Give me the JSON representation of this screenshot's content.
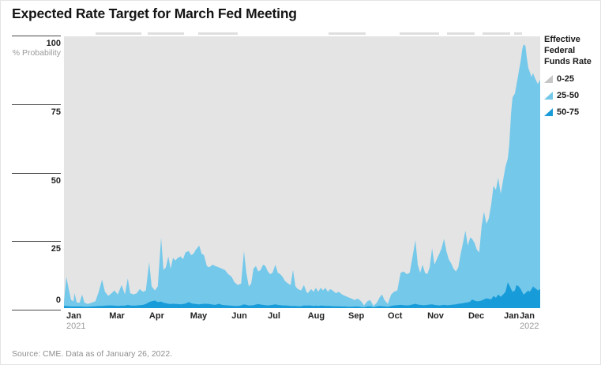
{
  "title": "Expected Rate Target for March Fed Meeting",
  "source": "Source: CME. Data as of January 26, 2022.",
  "y_axis": {
    "title": "% Probability",
    "ticks": [
      100,
      75,
      50,
      25,
      0
    ]
  },
  "x_axis": {
    "labels": [
      {
        "text": "Jan",
        "f": 0.005,
        "year": "2021"
      },
      {
        "text": "Mar",
        "f": 0.095
      },
      {
        "text": "Apr",
        "f": 0.179
      },
      {
        "text": "May",
        "f": 0.265
      },
      {
        "text": "Jun",
        "f": 0.352
      },
      {
        "text": "Jul",
        "f": 0.428
      },
      {
        "text": "Aug",
        "f": 0.512
      },
      {
        "text": "Sep",
        "f": 0.597
      },
      {
        "text": "Oct",
        "f": 0.68
      },
      {
        "text": "Nov",
        "f": 0.763
      },
      {
        "text": "Dec",
        "f": 0.849
      },
      {
        "text": "Jan",
        "f": 0.924
      },
      {
        "text": "Jan",
        "f": 0.957,
        "year": "2022"
      }
    ]
  },
  "legend": {
    "title_lines": [
      "Effective Federal",
      "Funds Rate"
    ],
    "items": [
      {
        "label": "0-25",
        "color": "#c6c6c6"
      },
      {
        "label": "25-50",
        "color": "#74c8ea"
      },
      {
        "label": "50-75",
        "color": "#189cd9"
      }
    ]
  },
  "colors": {
    "band_0_25_bg": "#e4e4e4",
    "band_25_50": "#74c8ea",
    "band_50_75": "#189cd9"
  },
  "top_edge_marks": [
    [
      0.066,
      0.163
    ],
    [
      0.176,
      0.252
    ],
    [
      0.282,
      0.365
    ],
    [
      0.556,
      0.634
    ],
    [
      0.705,
      0.788
    ],
    [
      0.804,
      0.862
    ],
    [
      0.879,
      0.937
    ],
    [
      0.945,
      0.962
    ]
  ],
  "chart_data": {
    "type": "area",
    "stacked": true,
    "title": "Expected Rate Target for March Fed Meeting",
    "ylabel": "% Probability",
    "ylim": [
      0,
      100
    ],
    "x_range": "fraction of axis from Jan 2021 to Jan 2022",
    "legend_position": "right",
    "series_names": [
      "50-75",
      "25-50",
      "0-25 (background remainder to 100%)"
    ],
    "points_format": [
      "x_fraction",
      "prob_25_50",
      "prob_50_75"
    ],
    "points": [
      [
        0,
        1.2,
        0.8
      ],
      [
        0.002,
        5.2,
        0.8
      ],
      [
        0.005,
        10.7,
        0.8
      ],
      [
        0.01,
        6.3,
        0.7
      ],
      [
        0.015,
        2.4,
        0.6
      ],
      [
        0.02,
        1.9,
        0.6
      ],
      [
        0.022,
        4.9,
        0.6
      ],
      [
        0.027,
        1.4,
        0.6
      ],
      [
        0.033,
        1.4,
        0.6
      ],
      [
        0.038,
        4.4,
        0.6
      ],
      [
        0.043,
        1.5,
        0.5
      ],
      [
        0.05,
        1,
        0.5
      ],
      [
        0.058,
        1.4,
        0.6
      ],
      [
        0.066,
        1.8,
        0.7
      ],
      [
        0.073,
        5.2,
        0.8
      ],
      [
        0.08,
        9.7,
        0.8
      ],
      [
        0.086,
        5.1,
        0.9
      ],
      [
        0.093,
        3.5,
        1
      ],
      [
        0.1,
        4.5,
        1
      ],
      [
        0.106,
        5.6,
        0.9
      ],
      [
        0.113,
        4.2,
        0.8
      ],
      [
        0.121,
        7.6,
        0.9
      ],
      [
        0.128,
        4.1,
        0.9
      ],
      [
        0.134,
        9.8,
        1.2
      ],
      [
        0.139,
        4.5,
        1
      ],
      [
        0.146,
        4.1,
        0.9
      ],
      [
        0.153,
        4.5,
        1
      ],
      [
        0.159,
        5.9,
        1.1
      ],
      [
        0.166,
        4.8,
        1.2
      ],
      [
        0.172,
        5,
        1.5
      ],
      [
        0.179,
        14.8,
        2.2
      ],
      [
        0.184,
        5.5,
        2.5
      ],
      [
        0.191,
        3.7,
        2.8
      ],
      [
        0.197,
        5.8,
        2.2
      ],
      [
        0.204,
        23.6,
        2.4
      ],
      [
        0.209,
        12,
        2
      ],
      [
        0.214,
        13.2,
        1.8
      ],
      [
        0.219,
        17.4,
        1.6
      ],
      [
        0.224,
        13,
        1.5
      ],
      [
        0.229,
        16.9,
        1.6
      ],
      [
        0.234,
        16,
        1.5
      ],
      [
        0.239,
        17,
        1.5
      ],
      [
        0.245,
        17.6,
        1.4
      ],
      [
        0.25,
        16.5,
        1.5
      ],
      [
        0.255,
        18.8,
        1.7
      ],
      [
        0.262,
        18.8,
        2.2
      ],
      [
        0.267,
        17.7,
        1.8
      ],
      [
        0.272,
        18.4,
        1.6
      ],
      [
        0.277,
        20,
        1.5
      ],
      [
        0.284,
        21.6,
        1.4
      ],
      [
        0.289,
        18.5,
        1.5
      ],
      [
        0.294,
        17.9,
        1.6
      ],
      [
        0.3,
        13.9,
        1.6
      ],
      [
        0.305,
        13.5,
        1.5
      ],
      [
        0.312,
        14.7,
        1.3
      ],
      [
        0.318,
        14.3,
        1.2
      ],
      [
        0.325,
        13.4,
        1.6
      ],
      [
        0.332,
        13.3,
        1.2
      ],
      [
        0.338,
        12.9,
        1.1
      ],
      [
        0.345,
        11.5,
        1
      ],
      [
        0.352,
        10.6,
        0.9
      ],
      [
        0.358,
        8.7,
        0.8
      ],
      [
        0.365,
        7.7,
        0.8
      ],
      [
        0.372,
        8,
        1
      ],
      [
        0.378,
        19.6,
        1.4
      ],
      [
        0.383,
        11.8,
        1.2
      ],
      [
        0.388,
        7,
        1
      ],
      [
        0.393,
        8,
        1
      ],
      [
        0.398,
        13.4,
        1.1
      ],
      [
        0.403,
        14.2,
        1.3
      ],
      [
        0.408,
        12,
        1.5
      ],
      [
        0.413,
        12.7,
        1.3
      ],
      [
        0.418,
        14.8,
        1.2
      ],
      [
        0.423,
        14.4,
        1.1
      ],
      [
        0.428,
        12.5,
        1
      ],
      [
        0.433,
        11.4,
        1.1
      ],
      [
        0.438,
        11.8,
        1.2
      ],
      [
        0.444,
        14.6,
        1.4
      ],
      [
        0.449,
        11.8,
        1.2
      ],
      [
        0.454,
        11.4,
        1.1
      ],
      [
        0.459,
        10.5,
        1
      ],
      [
        0.464,
        9,
        1
      ],
      [
        0.471,
        8.1,
        0.9
      ],
      [
        0.476,
        7.7,
        0.8
      ],
      [
        0.481,
        13.2,
        0.8
      ],
      [
        0.486,
        7.2,
        0.8
      ],
      [
        0.491,
        6.3,
        0.7
      ],
      [
        0.498,
        5.8,
        0.7
      ],
      [
        0.504,
        7.5,
        1
      ],
      [
        0.509,
        5.1,
        0.9
      ],
      [
        0.512,
        4.5,
        1
      ],
      [
        0.519,
        6.1,
        0.9
      ],
      [
        0.524,
        5.2,
        0.8
      ],
      [
        0.529,
        6.6,
        0.9
      ],
      [
        0.534,
        5.2,
        0.8
      ],
      [
        0.539,
        6.6,
        0.9
      ],
      [
        0.544,
        5.6,
        0.9
      ],
      [
        0.549,
        6.7,
        0.8
      ],
      [
        0.554,
        5.2,
        0.8
      ],
      [
        0.559,
        6.2,
        0.8
      ],
      [
        0.564,
        5.8,
        0.7
      ],
      [
        0.571,
        4.8,
        0.7
      ],
      [
        0.577,
        5.3,
        0.7
      ],
      [
        0.584,
        4.4,
        0.6
      ],
      [
        0.59,
        3.9,
        0.6
      ],
      [
        0.597,
        3.5,
        0.5
      ],
      [
        0.604,
        3,
        0.5
      ],
      [
        0.61,
        2.4,
        0.6
      ],
      [
        0.617,
        2.9,
        0.6
      ],
      [
        0.624,
        2.1,
        0.4
      ],
      [
        0.63,
        0.7,
        0.3
      ],
      [
        0.637,
        1.9,
        0.6
      ],
      [
        0.643,
        2.3,
        0.7
      ],
      [
        0.65,
        0.5,
        0.3
      ],
      [
        0.657,
        1.4,
        0.6
      ],
      [
        0.663,
        3.2,
        0.8
      ],
      [
        0.668,
        4.3,
        0.7
      ],
      [
        0.673,
        2.4,
        0.6
      ],
      [
        0.68,
        1,
        0.5
      ],
      [
        0.687,
        4.2,
        0.8
      ],
      [
        0.693,
        5,
        1
      ],
      [
        0.7,
        5.4,
        1.1
      ],
      [
        0.707,
        11.8,
        1.2
      ],
      [
        0.713,
        12.4,
        1.1
      ],
      [
        0.72,
        11.5,
        1
      ],
      [
        0.726,
        11.9,
        1.1
      ],
      [
        0.733,
        18.6,
        1.4
      ],
      [
        0.738,
        23.4,
        1.6
      ],
      [
        0.743,
        14.7,
        1.3
      ],
      [
        0.748,
        11.8,
        1.2
      ],
      [
        0.753,
        14.9,
        1.1
      ],
      [
        0.758,
        11.9,
        1.1
      ],
      [
        0.763,
        11.3,
        1.2
      ],
      [
        0.768,
        13.7,
        1.3
      ],
      [
        0.773,
        20.6,
        1.4
      ],
      [
        0.778,
        14.8,
        1.2
      ],
      [
        0.783,
        16.9,
        1.1
      ],
      [
        0.788,
        19,
        1
      ],
      [
        0.793,
        20.9,
        1.1
      ],
      [
        0.798,
        24.3,
        1.2
      ],
      [
        0.803,
        19.9,
        1.1
      ],
      [
        0.808,
        16.9,
        1.1
      ],
      [
        0.813,
        15.3,
        1.2
      ],
      [
        0.818,
        13.2,
        1.3
      ],
      [
        0.823,
        12.1,
        1.4
      ],
      [
        0.828,
        13.4,
        1.6
      ],
      [
        0.833,
        18.3,
        1.7
      ],
      [
        0.838,
        22.2,
        1.8
      ],
      [
        0.843,
        26.5,
        2
      ],
      [
        0.848,
        20.9,
        2.1
      ],
      [
        0.853,
        23.6,
        2.4
      ],
      [
        0.857,
        22.3,
        3.2
      ],
      [
        0.862,
        21.2,
        2.8
      ],
      [
        0.867,
        19,
        2.5
      ],
      [
        0.872,
        17.9,
        2.6
      ],
      [
        0.877,
        27.2,
        2.8
      ],
      [
        0.882,
        32.3,
        3.2
      ],
      [
        0.887,
        27.4,
        3.6
      ],
      [
        0.892,
        29.6,
        3.4
      ],
      [
        0.897,
        34.8,
        3.2
      ],
      [
        0.902,
        40.5,
        4.5
      ],
      [
        0.907,
        39.7,
        3.8
      ],
      [
        0.912,
        43,
        5
      ],
      [
        0.917,
        37.8,
        4.2
      ],
      [
        0.922,
        42,
        5
      ],
      [
        0.927,
        46,
        6
      ],
      [
        0.932,
        45.5,
        9.5
      ],
      [
        0.935,
        51.5,
        8.5
      ],
      [
        0.939,
        65,
        7
      ],
      [
        0.942,
        71.5,
        6
      ],
      [
        0.947,
        72.5,
        6.5
      ],
      [
        0.95,
        73.5,
        8.5
      ],
      [
        0.955,
        79,
        8
      ],
      [
        0.959,
        84,
        7
      ],
      [
        0.962,
        89,
        6
      ],
      [
        0.965,
        92,
        5
      ],
      [
        0.969,
        91,
        5.5
      ],
      [
        0.972,
        86,
        6
      ],
      [
        0.975,
        82,
        6.5
      ],
      [
        0.978,
        81,
        6
      ],
      [
        0.982,
        78,
        7
      ],
      [
        0.985,
        78.5,
        8
      ],
      [
        0.988,
        77.5,
        7.5
      ],
      [
        0.992,
        76.5,
        7
      ],
      [
        0.995,
        76,
        6.5
      ],
      [
        1,
        77,
        7
      ]
    ]
  }
}
